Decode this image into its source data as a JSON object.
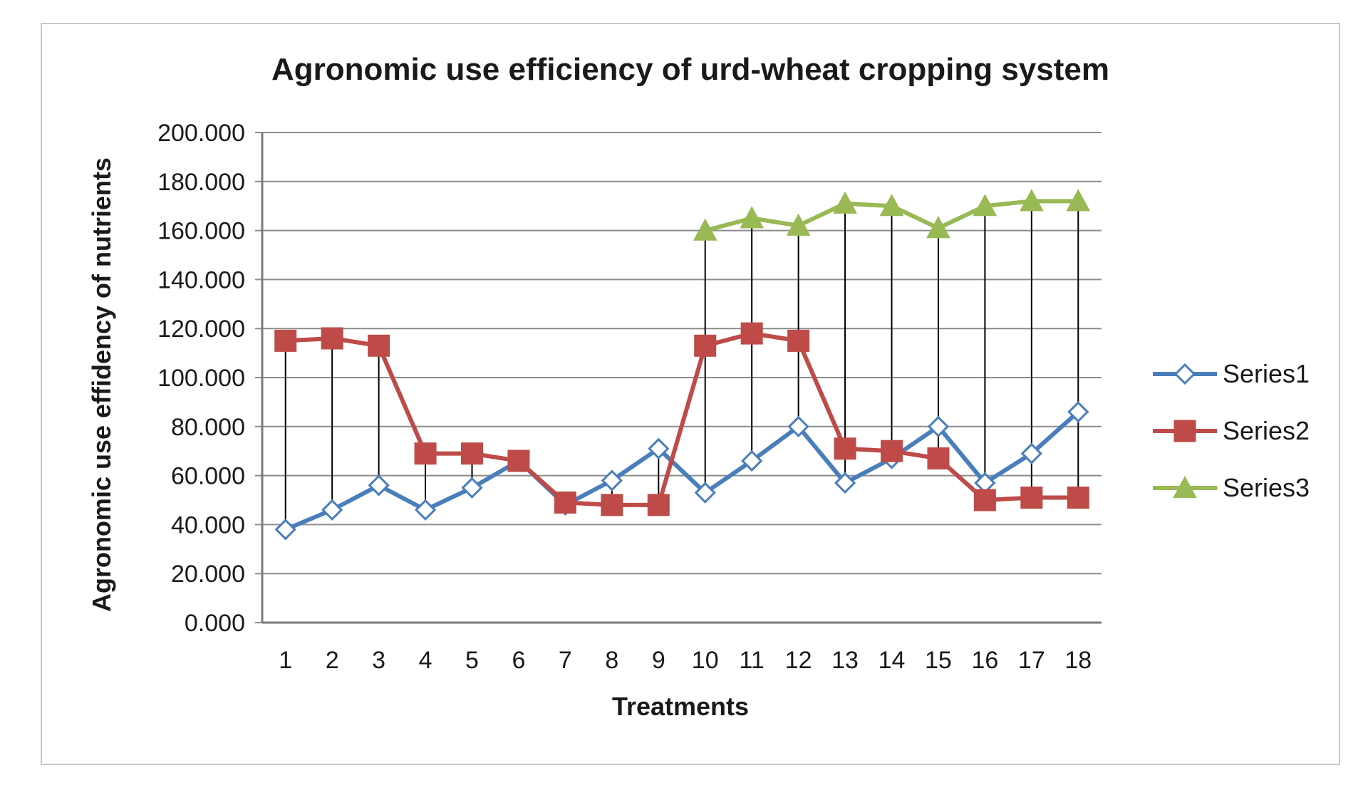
{
  "chart_data": {
    "type": "line",
    "title": "Agronomic use efficiency of urd-wheat cropping system",
    "xlabel": "Treatments",
    "ylabel": "Agronomic use effidency of nutrients",
    "ylim": [
      0,
      200
    ],
    "ytick_step": 20,
    "ytick_labels": [
      "0.000",
      "20.000",
      "40.000",
      "60.000",
      "80.000",
      "100.000",
      "120.000",
      "140.000",
      "160.000",
      "180.000",
      "200.000"
    ],
    "categories": [
      "1",
      "2",
      "3",
      "4",
      "5",
      "6",
      "7",
      "8",
      "9",
      "10",
      "11",
      "12",
      "13",
      "14",
      "15",
      "16",
      "17",
      "18"
    ],
    "grid": true,
    "hi_lo_lines": true,
    "legend_position": "right",
    "series": [
      {
        "name": "Series1",
        "color": "#4a7ebb",
        "marker": "diamond-open",
        "values": [
          38,
          46,
          56,
          46,
          55,
          66,
          48,
          58,
          71,
          53,
          66,
          80,
          57,
          67,
          80,
          57,
          69,
          86
        ]
      },
      {
        "name": "Series2",
        "color": "#be4b48",
        "marker": "square",
        "values": [
          115,
          116,
          113,
          69,
          69,
          66,
          49,
          48,
          48,
          113,
          118,
          115,
          71,
          70,
          67,
          50,
          51,
          51
        ]
      },
      {
        "name": "Series3",
        "color": "#98b954",
        "marker": "triangle",
        "values": [
          null,
          null,
          null,
          null,
          null,
          null,
          null,
          null,
          null,
          160,
          165,
          162,
          171,
          170,
          161,
          170,
          172,
          172
        ]
      }
    ]
  }
}
